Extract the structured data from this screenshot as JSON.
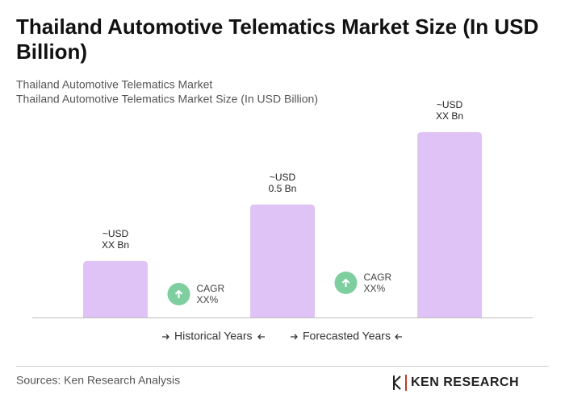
{
  "chart_data": {
    "type": "bar",
    "title": "Thailand Automotive Telematics Market Size (In USD Billion)",
    "subtitle": [
      "Thailand Automotive Telematics Market",
      "Thailand Automotive Telematics Market Size (In USD Billion)"
    ],
    "categories": [
      null,
      null,
      null
    ],
    "values": [
      0.25,
      0.5,
      0.82
    ],
    "value_labels": [
      [
        "~USD",
        "XX Bn"
      ],
      [
        "~USD",
        "0.5 Bn"
      ],
      [
        "~USD",
        "XX Bn"
      ]
    ],
    "color": "#dfc3f6",
    "annotations": [
      [
        "CAGR",
        "XX%"
      ],
      [
        "CAGR",
        "XX%"
      ]
    ],
    "periods": [
      "Historical Years",
      "Forecasted Years"
    ],
    "source": "Sources: Ken Research Analysis",
    "logo": "KEN RESEARCH"
  }
}
